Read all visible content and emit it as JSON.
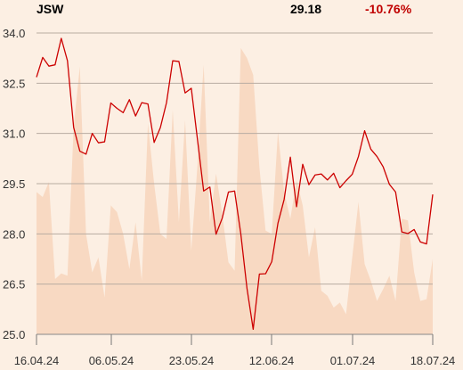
{
  "header": {
    "ticker": "JSW",
    "price": "29.18",
    "change": "-10.76%"
  },
  "colors": {
    "background": "#fcefe3",
    "line": "#cc0000",
    "volume_fill": "#f8d9c2",
    "grid": "#b8aca2",
    "change": "#c00000"
  },
  "chart_data": {
    "type": "line",
    "title": "",
    "xlabel": "",
    "ylabel": "",
    "ylim": [
      25.0,
      34.0
    ],
    "yticks": [
      "34.0",
      "32.5",
      "31.0",
      "29.5",
      "28.0",
      "26.5",
      "25.0"
    ],
    "xtick_labels": [
      "16.04.24",
      "06.05.24",
      "23.05.24",
      "12.06.24",
      "01.07.24",
      "18.07.24"
    ],
    "grid": "horizontal",
    "series": [
      {
        "type": "line",
        "values": [
          32.68,
          33.27,
          33.01,
          33.05,
          33.84,
          33.17,
          31.18,
          30.47,
          30.38,
          31.0,
          30.72,
          30.75,
          31.91,
          31.75,
          31.62,
          32.01,
          31.52,
          31.92,
          31.88,
          30.73,
          31.17,
          31.92,
          33.17,
          33.15,
          32.21,
          32.35,
          30.82,
          29.28,
          29.4,
          27.99,
          28.47,
          29.25,
          29.28,
          28.0,
          26.37,
          25.15,
          26.8,
          26.81,
          27.17,
          28.32,
          29.03,
          30.29,
          28.81,
          30.08,
          29.47,
          29.76,
          29.79,
          29.61,
          29.81,
          29.38,
          29.59,
          29.78,
          30.31,
          31.08,
          30.53,
          30.31,
          30.0,
          29.48,
          29.25,
          28.06,
          28.01,
          28.13,
          27.76,
          27.7,
          29.18
        ]
      },
      {
        "type": "area",
        "values": [
          29.25,
          29.1,
          29.55,
          26.65,
          26.82,
          26.75,
          31.2,
          33.0,
          28.0,
          26.85,
          27.3,
          26.1,
          28.85,
          28.65,
          28.0,
          26.95,
          28.35,
          26.6,
          31.3,
          29.5,
          28.0,
          27.85,
          31.7,
          28.35,
          31.4,
          27.5,
          30.05,
          33.05,
          28.35,
          29.8,
          28.6,
          27.15,
          26.9,
          33.55,
          33.25,
          32.75,
          30.0,
          28.1,
          28.0,
          31.05,
          29.25,
          28.45,
          29.6,
          28.85,
          27.3,
          28.2,
          26.3,
          26.15,
          25.8,
          25.95,
          25.6,
          27.3,
          28.95,
          27.1,
          26.6,
          26.0,
          26.35,
          26.75,
          26.0,
          28.45,
          28.4,
          26.85,
          26.0,
          26.05,
          27.25
        ]
      }
    ]
  }
}
